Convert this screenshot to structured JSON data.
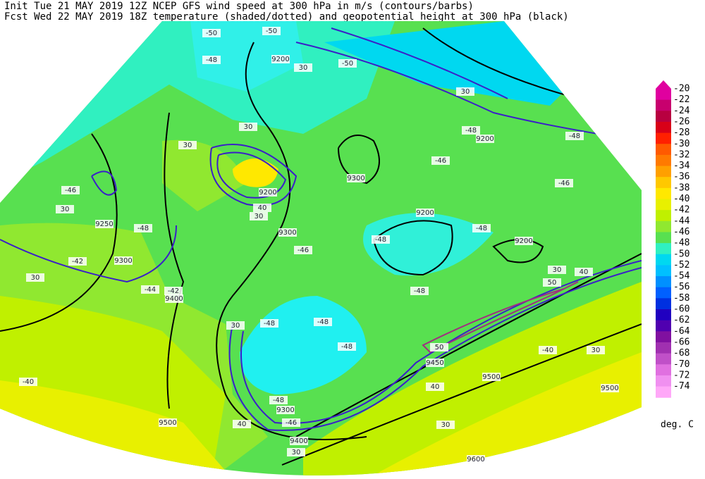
{
  "header": {
    "line1": "Init  Tue 21 MAY 2019 12Z  NCEP GFS wind speed at 300 hPa in m/s (contours/barbs)",
    "line2": "Fcst Wed 22 MAY 2019 18Z  temperature (shaded/dotted) and geopotential height at 300 hPa (black)"
  },
  "colorbar": {
    "labels": [
      "-20",
      "-22",
      "-24",
      "-26",
      "-28",
      "-30",
      "-32",
      "-34",
      "-36",
      "-38",
      "-40",
      "-42",
      "-44",
      "-46",
      "-48",
      "-50",
      "-52",
      "-54",
      "-56",
      "-58",
      "-60",
      "-62",
      "-64",
      "-66",
      "-68",
      "-70",
      "-72",
      "-74"
    ],
    "colors": [
      "#e0009f",
      "#c8006e",
      "#b80040",
      "#d80018",
      "#ff2000",
      "#ff5a00",
      "#ff7a00",
      "#ffa000",
      "#ffc800",
      "#ffe800",
      "#e8f000",
      "#c0f000",
      "#90e830",
      "#58e050",
      "#30f0c0",
      "#00d8f0",
      "#00c0ff",
      "#0090ff",
      "#0060ff",
      "#0030e0",
      "#2000c0",
      "#5000b0",
      "#8010a0",
      "#a030b0",
      "#c050c8",
      "#e070e0",
      "#f090f0",
      "#ffa8f8"
    ],
    "unit": "deg. C"
  },
  "map": {
    "labels": [
      "-50",
      "-50",
      "-48",
      "9200",
      "30",
      "-50",
      "30",
      "-48",
      "-48",
      "9200",
      "-46",
      "30",
      "9250",
      "-48",
      "9200",
      "-48",
      "9200",
      "-46",
      "-48",
      "9300",
      "-42",
      "30",
      "-44",
      "-42",
      "9400",
      "-46",
      "-46",
      "9300",
      "30",
      "30",
      "9200",
      "40",
      "30",
      "9300",
      "-48",
      "-48",
      "-48",
      "-48",
      "30",
      "-40",
      "50",
      "30",
      "40",
      "30",
      "-40",
      "40",
      "9450",
      "9500",
      "9500",
      "30",
      "-48",
      "9300",
      "40",
      "-46",
      "9400",
      "30",
      "9500",
      "9600",
      "50"
    ]
  }
}
